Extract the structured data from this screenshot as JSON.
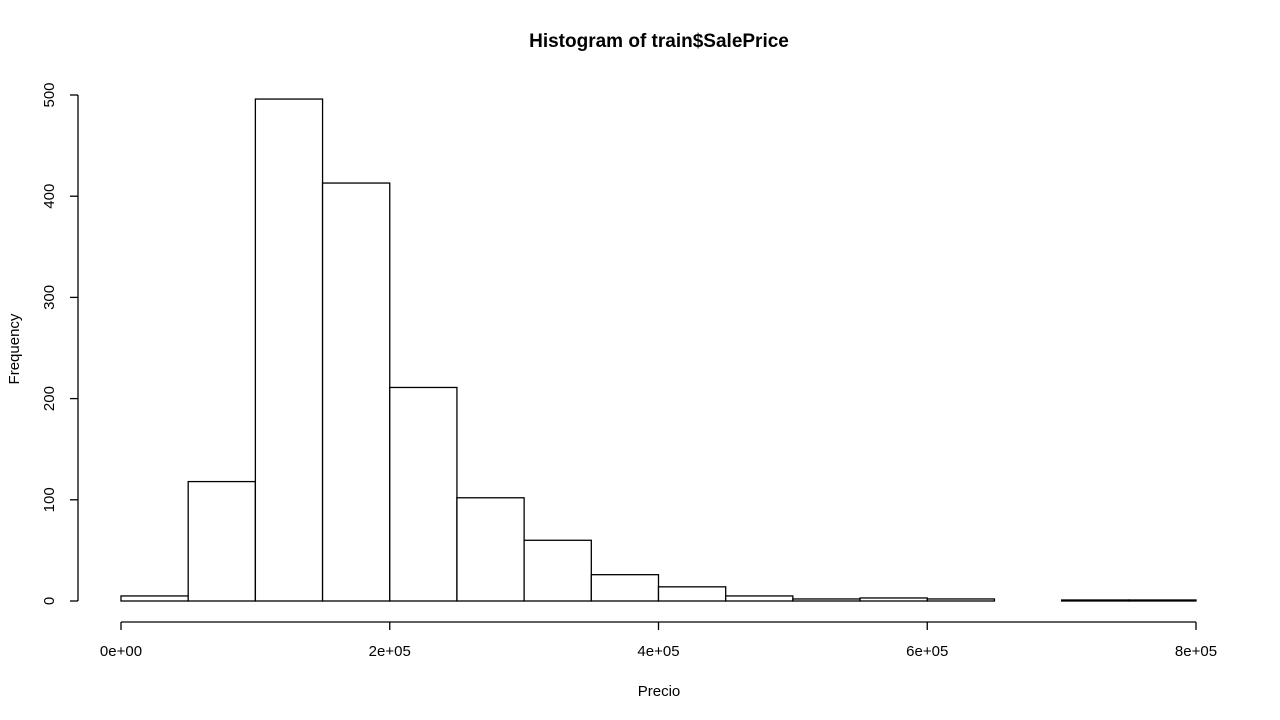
{
  "chart_data": {
    "type": "histogram",
    "title": "Histogram of train$SalePrice",
    "xlabel": "Precio",
    "ylabel": "Frequency",
    "bins": [
      {
        "x0": 0,
        "x1": 50000,
        "count": 5
      },
      {
        "x0": 50000,
        "x1": 100000,
        "count": 118
      },
      {
        "x0": 100000,
        "x1": 150000,
        "count": 496
      },
      {
        "x0": 150000,
        "x1": 200000,
        "count": 413
      },
      {
        "x0": 200000,
        "x1": 250000,
        "count": 211
      },
      {
        "x0": 250000,
        "x1": 300000,
        "count": 102
      },
      {
        "x0": 300000,
        "x1": 350000,
        "count": 60
      },
      {
        "x0": 350000,
        "x1": 400000,
        "count": 26
      },
      {
        "x0": 400000,
        "x1": 450000,
        "count": 14
      },
      {
        "x0": 450000,
        "x1": 500000,
        "count": 5
      },
      {
        "x0": 500000,
        "x1": 550000,
        "count": 2
      },
      {
        "x0": 550000,
        "x1": 600000,
        "count": 3
      },
      {
        "x0": 600000,
        "x1": 650000,
        "count": 2
      },
      {
        "x0": 650000,
        "x1": 700000,
        "count": 0
      },
      {
        "x0": 700000,
        "x1": 750000,
        "count": 1
      },
      {
        "x0": 750000,
        "x1": 800000,
        "count": 1
      }
    ],
    "xlim": [
      0,
      800000
    ],
    "ylim": [
      0,
      500
    ],
    "x_ticks": [
      {
        "value": 0,
        "label": "0e+00"
      },
      {
        "value": 200000,
        "label": "2e+05"
      },
      {
        "value": 400000,
        "label": "4e+05"
      },
      {
        "value": 600000,
        "label": "6e+05"
      },
      {
        "value": 800000,
        "label": "8e+05"
      }
    ],
    "y_ticks": [
      {
        "value": 0,
        "label": "0"
      },
      {
        "value": 100,
        "label": "100"
      },
      {
        "value": 200,
        "label": "200"
      },
      {
        "value": 300,
        "label": "300"
      },
      {
        "value": 400,
        "label": "400"
      },
      {
        "value": 500,
        "label": "500"
      }
    ],
    "grid": false,
    "legend": "none",
    "bar_fill": "#ffffff",
    "bar_stroke": "#000000"
  }
}
